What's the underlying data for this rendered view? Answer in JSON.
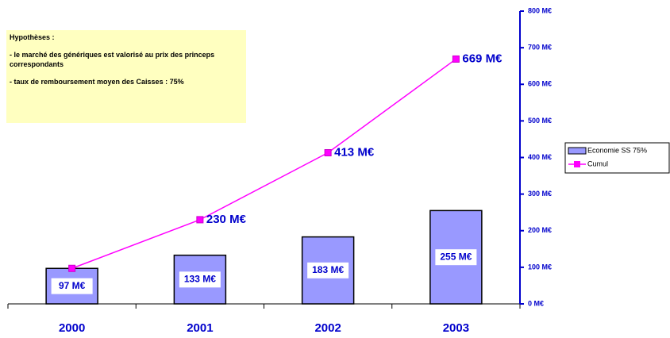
{
  "note_box": {
    "title": "Hypothèses :",
    "lines": [
      "- le marché des génériques est valorisé au prix des princeps correspondants",
      "- taux de remboursement moyen des Caisses : 75%"
    ]
  },
  "chart_data": {
    "type": "bar",
    "categories": [
      "2000",
      "2001",
      "2002",
      "2003"
    ],
    "series": [
      {
        "name": "Economie SS 75%",
        "type": "bar",
        "color": "#9999ff",
        "values": [
          97,
          133,
          183,
          255
        ],
        "value_labels": [
          "97 M€",
          "133 M€",
          "183 M€",
          "255 M€"
        ]
      },
      {
        "name": "Cumul",
        "type": "line",
        "color": "#ff00ff",
        "values": [
          97,
          230,
          413,
          669
        ],
        "value_labels": [
          null,
          "230 M€",
          "413 M€",
          "669 M€"
        ]
      }
    ],
    "ylim": [
      0,
      800
    ],
    "yticks": [
      {
        "value": 0,
        "label": "0 M€"
      },
      {
        "value": 100,
        "label": "100 M€"
      },
      {
        "value": 200,
        "label": "200 M€"
      },
      {
        "value": 300,
        "label": "300 M€"
      },
      {
        "value": 400,
        "label": "400 M€"
      },
      {
        "value": 500,
        "label": "500 M€"
      },
      {
        "value": 600,
        "label": "600 M€"
      },
      {
        "value": 700,
        "label": "700 M€"
      },
      {
        "value": 800,
        "label": "800 M€"
      }
    ],
    "legend": "right"
  }
}
